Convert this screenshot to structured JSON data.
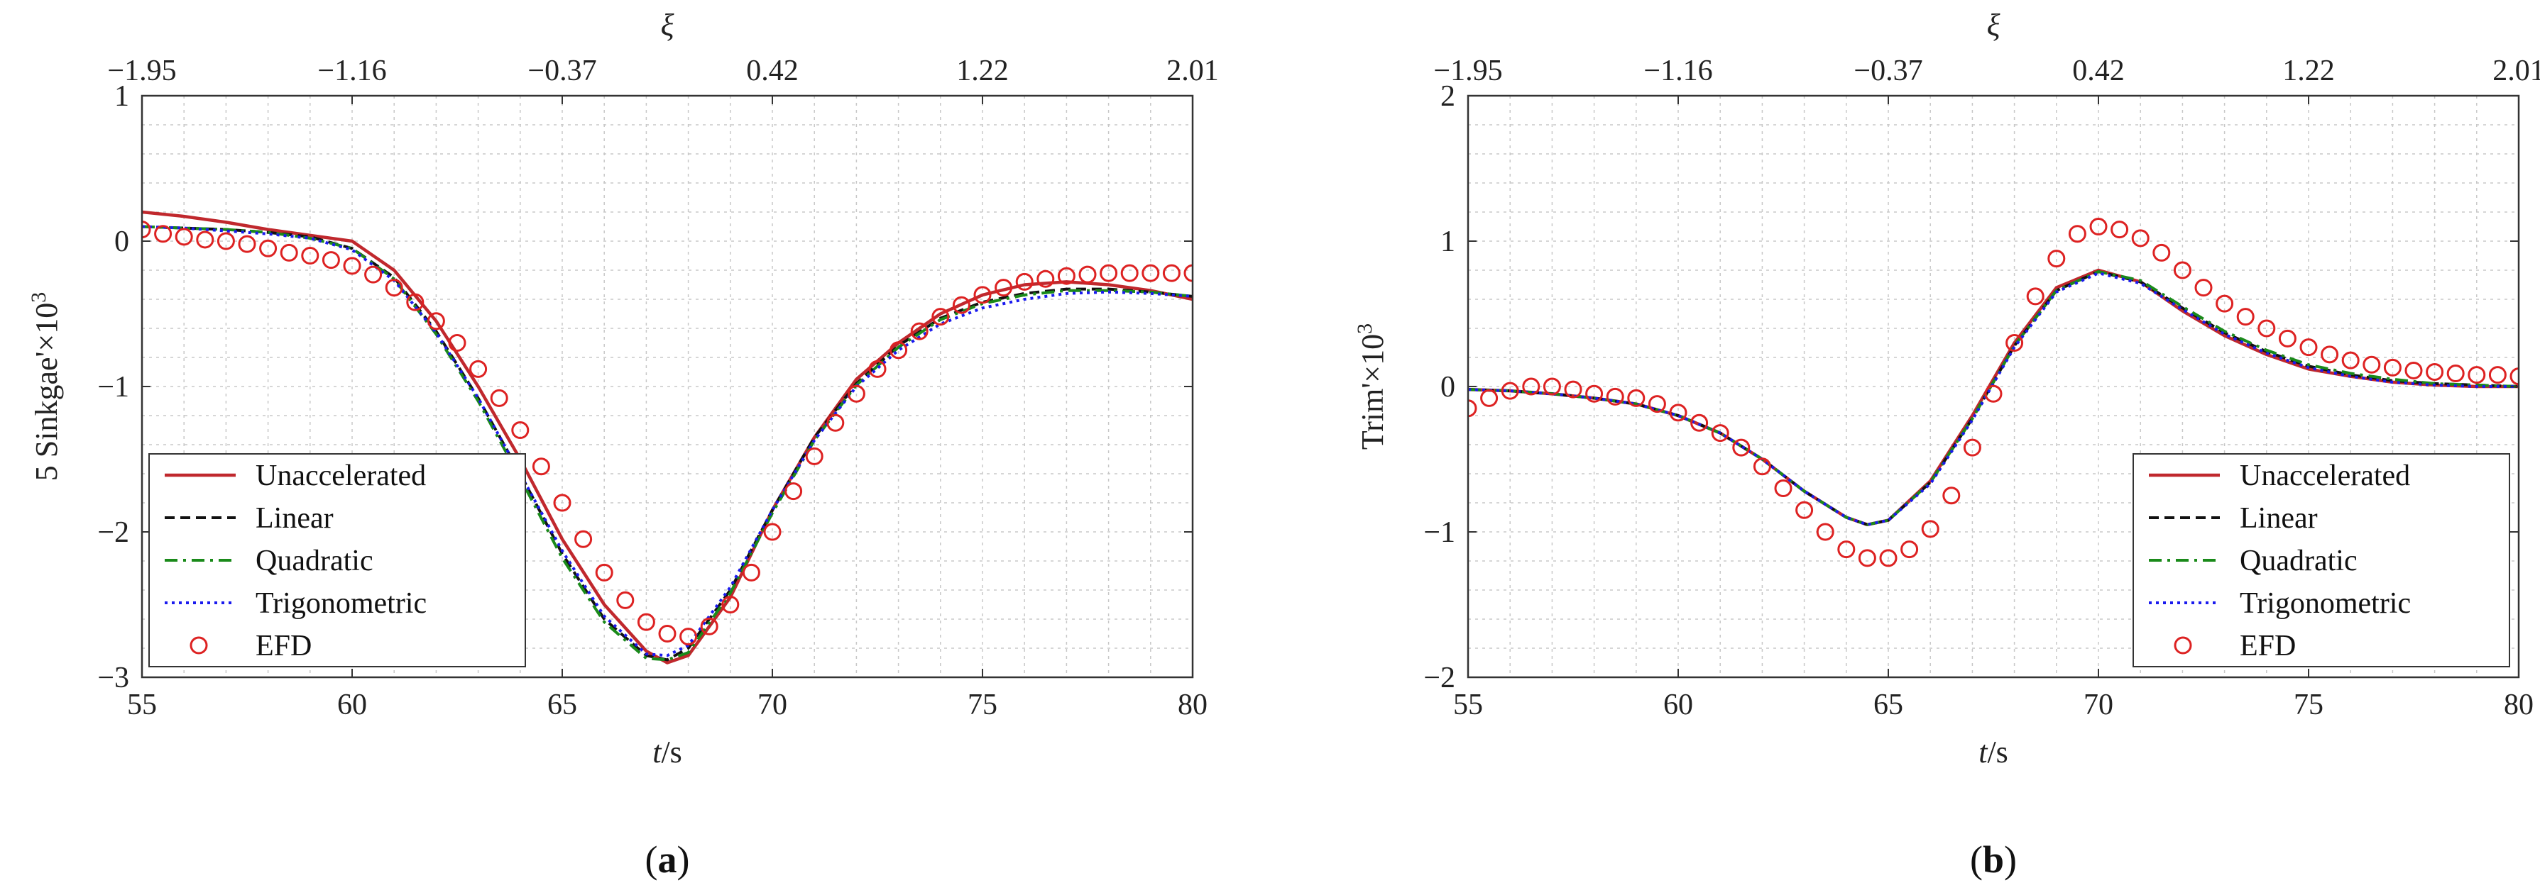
{
  "chart_data": [
    {
      "type": "line",
      "panel_label": "a",
      "xlabel": "t/s",
      "x2label": "ξ",
      "ylabel": "5 Sinkgae'×10",
      "ylabel_exp": "3",
      "xlim": [
        55,
        80
      ],
      "ylim": [
        -3,
        1
      ],
      "xticks": [
        55,
        60,
        65,
        70,
        75,
        80
      ],
      "yticks": [
        -3,
        -2,
        -1,
        0,
        1
      ],
      "x2ticks": [
        "−1.95",
        "−1.16",
        "−0.37",
        "0.42",
        "1.22",
        "2.01"
      ],
      "grid": true,
      "legend_position": "bottom-left",
      "series": [
        {
          "name": "Unaccelerated",
          "style": "solid",
          "color": "#c0282d",
          "x": [
            55,
            56,
            57,
            58,
            59,
            60,
            61,
            62,
            63,
            64,
            65,
            66,
            67,
            67.5,
            68,
            69,
            70,
            71,
            72,
            73,
            74,
            75,
            76,
            77,
            78,
            79,
            80
          ],
          "y": [
            0.2,
            0.17,
            0.13,
            0.08,
            0.04,
            0.0,
            -0.2,
            -0.55,
            -1.0,
            -1.5,
            -2.05,
            -2.5,
            -2.82,
            -2.9,
            -2.85,
            -2.45,
            -1.85,
            -1.35,
            -0.95,
            -0.7,
            -0.5,
            -0.37,
            -0.3,
            -0.28,
            -0.3,
            -0.34,
            -0.4
          ]
        },
        {
          "name": "Linear",
          "style": "dashed",
          "color": "#111111",
          "x": [
            55,
            56,
            57,
            58,
            59,
            60,
            61,
            62,
            63,
            64,
            65,
            66,
            67,
            67.5,
            68,
            69,
            70,
            71,
            72,
            73,
            74,
            75,
            76,
            77,
            78,
            79,
            80
          ],
          "y": [
            0.1,
            0.09,
            0.08,
            0.06,
            0.03,
            -0.05,
            -0.25,
            -0.62,
            -1.08,
            -1.6,
            -2.15,
            -2.6,
            -2.85,
            -2.88,
            -2.8,
            -2.4,
            -1.85,
            -1.35,
            -0.98,
            -0.72,
            -0.53,
            -0.42,
            -0.36,
            -0.33,
            -0.33,
            -0.35,
            -0.38
          ]
        },
        {
          "name": "Quadratic",
          "style": "dashdot",
          "color": "#1a8a1a",
          "x": [
            55,
            56,
            57,
            58,
            59,
            60,
            61,
            62,
            63,
            64,
            65,
            66,
            67,
            67.5,
            68,
            69,
            70,
            71,
            72,
            73,
            74,
            75,
            76,
            77,
            78,
            79,
            80
          ],
          "y": [
            0.1,
            0.09,
            0.08,
            0.06,
            0.02,
            -0.05,
            -0.26,
            -0.64,
            -1.1,
            -1.63,
            -2.18,
            -2.62,
            -2.87,
            -2.88,
            -2.83,
            -2.42,
            -1.87,
            -1.37,
            -0.99,
            -0.73,
            -0.54,
            -0.43,
            -0.37,
            -0.34,
            -0.34,
            -0.35,
            -0.38
          ]
        },
        {
          "name": "Trigonometric",
          "style": "dotted",
          "color": "#1a1aee",
          "x": [
            55,
            56,
            57,
            58,
            59,
            60,
            61,
            62,
            63,
            64,
            65,
            66,
            67,
            67.5,
            68,
            69,
            70,
            71,
            72,
            73,
            74,
            75,
            76,
            77,
            78,
            79,
            80
          ],
          "y": [
            0.1,
            0.09,
            0.07,
            0.05,
            0.02,
            -0.06,
            -0.27,
            -0.63,
            -1.08,
            -1.6,
            -2.13,
            -2.58,
            -2.84,
            -2.85,
            -2.78,
            -2.38,
            -1.85,
            -1.37,
            -1.0,
            -0.75,
            -0.57,
            -0.46,
            -0.4,
            -0.36,
            -0.35,
            -0.36,
            -0.38
          ]
        },
        {
          "name": "EFD",
          "style": "markers",
          "color": "#dd2222",
          "x": [
            55,
            55.5,
            56,
            56.5,
            57,
            57.5,
            58,
            58.5,
            59,
            59.5,
            60,
            60.5,
            61,
            61.5,
            62,
            62.5,
            63,
            63.5,
            64,
            64.5,
            65,
            65.5,
            66,
            66.5,
            67,
            67.5,
            68,
            68.5,
            69,
            69.5,
            70,
            70.5,
            71,
            71.5,
            72,
            72.5,
            73,
            73.5,
            74,
            74.5,
            75,
            75.5,
            76,
            76.5,
            77,
            77.5,
            78,
            78.5,
            79,
            79.5,
            80
          ],
          "y": [
            0.08,
            0.05,
            0.03,
            0.01,
            0.0,
            -0.02,
            -0.05,
            -0.08,
            -0.1,
            -0.13,
            -0.17,
            -0.23,
            -0.32,
            -0.42,
            -0.55,
            -0.7,
            -0.88,
            -1.08,
            -1.3,
            -1.55,
            -1.8,
            -2.05,
            -2.28,
            -2.47,
            -2.62,
            -2.7,
            -2.72,
            -2.65,
            -2.5,
            -2.28,
            -2.0,
            -1.72,
            -1.48,
            -1.25,
            -1.05,
            -0.88,
            -0.75,
            -0.62,
            -0.52,
            -0.44,
            -0.37,
            -0.32,
            -0.28,
            -0.26,
            -0.24,
            -0.23,
            -0.22,
            -0.22,
            -0.22,
            -0.22,
            -0.22
          ]
        }
      ]
    },
    {
      "type": "line",
      "panel_label": "b",
      "xlabel": "t/s",
      "x2label": "ξ",
      "ylabel": "Trim'×10",
      "ylabel_exp": "3",
      "xlim": [
        55,
        80
      ],
      "ylim": [
        -2,
        2
      ],
      "xticks": [
        55,
        60,
        65,
        70,
        75,
        80
      ],
      "yticks": [
        -2,
        -1,
        0,
        1,
        2
      ],
      "x2ticks": [
        "−1.95",
        "−1.16",
        "−0.37",
        "0.42",
        "1.22",
        "2.01"
      ],
      "grid": true,
      "legend_position": "bottom-right",
      "series": [
        {
          "name": "Unaccelerated",
          "style": "solid",
          "color": "#c0282d",
          "x": [
            55,
            56,
            57,
            58,
            59,
            60,
            61,
            62,
            63,
            64,
            64.5,
            65,
            66,
            67,
            68,
            69,
            70,
            71,
            72,
            73,
            74,
            75,
            76,
            77,
            78,
            79,
            80
          ],
          "y": [
            -0.02,
            -0.03,
            -0.05,
            -0.08,
            -0.12,
            -0.2,
            -0.32,
            -0.5,
            -0.72,
            -0.9,
            -0.95,
            -0.92,
            -0.65,
            -0.2,
            0.3,
            0.68,
            0.8,
            0.72,
            0.52,
            0.35,
            0.22,
            0.12,
            0.07,
            0.03,
            0.01,
            0.0,
            0.0
          ]
        },
        {
          "name": "Linear",
          "style": "dashed",
          "color": "#111111",
          "x": [
            55,
            56,
            57,
            58,
            59,
            60,
            61,
            62,
            63,
            64,
            64.5,
            65,
            66,
            67,
            68,
            69,
            70,
            71,
            72,
            73,
            74,
            75,
            76,
            77,
            78,
            79,
            80
          ],
          "y": [
            -0.02,
            -0.03,
            -0.05,
            -0.08,
            -0.12,
            -0.2,
            -0.32,
            -0.5,
            -0.72,
            -0.9,
            -0.95,
            -0.92,
            -0.66,
            -0.22,
            0.28,
            0.66,
            0.79,
            0.72,
            0.54,
            0.37,
            0.24,
            0.14,
            0.08,
            0.04,
            0.02,
            0.01,
            0.0
          ]
        },
        {
          "name": "Quadratic",
          "style": "dashdot",
          "color": "#1a8a1a",
          "x": [
            55,
            56,
            57,
            58,
            59,
            60,
            61,
            62,
            63,
            64,
            64.5,
            65,
            66,
            67,
            68,
            69,
            70,
            71,
            72,
            73,
            74,
            75,
            76,
            77,
            78,
            79,
            80
          ],
          "y": [
            -0.02,
            -0.03,
            -0.05,
            -0.08,
            -0.12,
            -0.2,
            -0.32,
            -0.5,
            -0.72,
            -0.9,
            -0.95,
            -0.92,
            -0.66,
            -0.22,
            0.28,
            0.66,
            0.79,
            0.73,
            0.55,
            0.38,
            0.25,
            0.15,
            0.09,
            0.05,
            0.02,
            0.01,
            0.0
          ]
        },
        {
          "name": "Trigonometric",
          "style": "dotted",
          "color": "#1a1aee",
          "x": [
            55,
            56,
            57,
            58,
            59,
            60,
            61,
            62,
            63,
            64,
            64.5,
            65,
            66,
            67,
            68,
            69,
            70,
            71,
            72,
            73,
            74,
            75,
            76,
            77,
            78,
            79,
            80
          ],
          "y": [
            -0.02,
            -0.03,
            -0.05,
            -0.08,
            -0.12,
            -0.2,
            -0.32,
            -0.5,
            -0.72,
            -0.9,
            -0.95,
            -0.92,
            -0.67,
            -0.23,
            0.27,
            0.65,
            0.78,
            0.71,
            0.53,
            0.36,
            0.23,
            0.13,
            0.07,
            0.03,
            0.01,
            0.0,
            0.0
          ]
        },
        {
          "name": "EFD",
          "style": "markers",
          "color": "#dd2222",
          "x": [
            55,
            55.5,
            56,
            56.5,
            57,
            57.5,
            58,
            58.5,
            59,
            59.5,
            60,
            60.5,
            61,
            61.5,
            62,
            62.5,
            63,
            63.5,
            64,
            64.5,
            65,
            65.5,
            66,
            66.5,
            67,
            67.5,
            68,
            68.5,
            69,
            69.5,
            70,
            70.5,
            71,
            71.5,
            72,
            72.5,
            73,
            73.5,
            74,
            74.5,
            75,
            75.5,
            76,
            76.5,
            77,
            77.5,
            78,
            78.5,
            79,
            79.5,
            80
          ],
          "y": [
            -0.15,
            -0.08,
            -0.03,
            0.0,
            0.0,
            -0.02,
            -0.05,
            -0.07,
            -0.08,
            -0.12,
            -0.18,
            -0.25,
            -0.32,
            -0.42,
            -0.55,
            -0.7,
            -0.85,
            -1.0,
            -1.12,
            -1.18,
            -1.18,
            -1.12,
            -0.98,
            -0.75,
            -0.42,
            -0.05,
            0.3,
            0.62,
            0.88,
            1.05,
            1.1,
            1.08,
            1.02,
            0.92,
            0.8,
            0.68,
            0.57,
            0.48,
            0.4,
            0.33,
            0.27,
            0.22,
            0.18,
            0.15,
            0.13,
            0.11,
            0.1,
            0.09,
            0.08,
            0.08,
            0.07
          ]
        }
      ]
    }
  ]
}
